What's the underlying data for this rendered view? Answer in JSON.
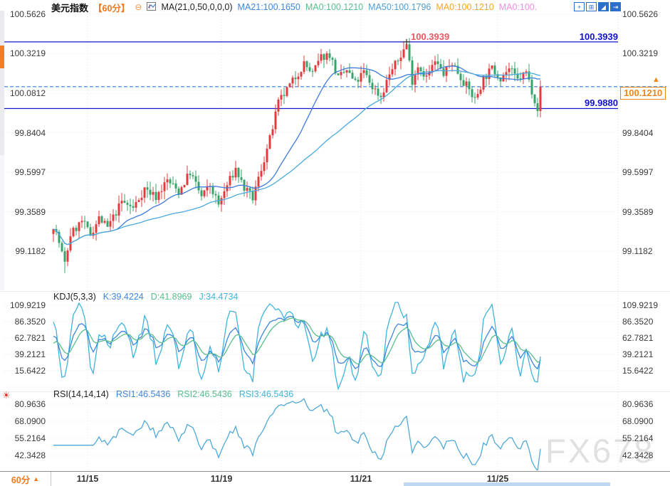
{
  "header": {
    "title": "美元指数",
    "period": "【60分】",
    "collapse_glyph": "⊖",
    "ma_settings": "MA(21,0,50,0,0,0)",
    "ma_values": [
      {
        "label": "MA21:100.1650",
        "color": "#3E86DD"
      },
      {
        "label": "MA0:100.1210",
        "color": "#57BE8C"
      },
      {
        "label": "MA50:100.1796",
        "color": "#4E9CD6"
      },
      {
        "label": "MA0:100.1210",
        "color": "#F5A429"
      },
      {
        "label": "MA0:100.",
        "color": "#EF8FE0"
      }
    ]
  },
  "toolbar": {
    "icons": [
      {
        "name": "pan-tool-icon",
        "glyph": "+"
      },
      {
        "name": "axis-scale-icon",
        "glyph": "⊞"
      },
      {
        "name": "auto-fit-icon",
        "glyph": "◢"
      },
      {
        "name": "exit-fullscreen-icon",
        "glyph": "⇥"
      }
    ]
  },
  "levels": {
    "resistance": "100.3939",
    "support": "99.9880",
    "current_price": "100.1210"
  },
  "kdj_header": {
    "name": "KDJ(5,3,3)",
    "k": "K:39.4224",
    "d": "D:41.8969",
    "j": "J:34.4734"
  },
  "rsi_header": {
    "name": "RSI(14,14,14)",
    "rsi1": "RSI1:46.5436",
    "rsi2": "RSI2:46.5436",
    "rsi3": "RSI3:46.5436"
  },
  "footer": {
    "period": "60分",
    "arrow": "▲"
  },
  "watermark": "FX678",
  "chart_data": {
    "type": "candlestick",
    "title": "美元指数 60分",
    "bars": 172,
    "price_axis": [
      "100.5626",
      "100.3219",
      "100.0812",
      "99.8404",
      "99.5997",
      "99.3589",
      "99.1182"
    ],
    "price_axis_right": [
      "100.5626",
      "100.3219",
      "99.8404",
      "99.5997",
      "99.3589",
      "99.1182"
    ],
    "x_ticks": [
      {
        "label": "11/15",
        "bar": 12
      },
      {
        "label": "11/19",
        "bar": 59
      },
      {
        "label": "11/21",
        "bar": 108
      },
      {
        "label": "11/25",
        "bar": 156
      }
    ],
    "close_anchors": [
      [
        0,
        99.28
      ],
      [
        2,
        99.17
      ],
      [
        4,
        99.04
      ],
      [
        6,
        99.22
      ],
      [
        10,
        99.3
      ],
      [
        13,
        99.22
      ],
      [
        16,
        99.32
      ],
      [
        19,
        99.26
      ],
      [
        24,
        99.42
      ],
      [
        28,
        99.38
      ],
      [
        32,
        99.5
      ],
      [
        36,
        99.45
      ],
      [
        40,
        99.55
      ],
      [
        44,
        99.48
      ],
      [
        48,
        99.6
      ],
      [
        52,
        99.45
      ],
      [
        55,
        99.52
      ],
      [
        58,
        99.4
      ],
      [
        61,
        99.52
      ],
      [
        64,
        99.62
      ],
      [
        67,
        99.5
      ],
      [
        70,
        99.44
      ],
      [
        73,
        99.62
      ],
      [
        76,
        99.8
      ],
      [
        79,
        100.02
      ],
      [
        82,
        100.1
      ],
      [
        85,
        100.18
      ],
      [
        88,
        100.26
      ],
      [
        91,
        100.2
      ],
      [
        94,
        100.3
      ],
      [
        97,
        100.32
      ],
      [
        100,
        100.17
      ],
      [
        103,
        100.22
      ],
      [
        106,
        100.14
      ],
      [
        109,
        100.21
      ],
      [
        112,
        100.12
      ],
      [
        115,
        100.06
      ],
      [
        118,
        100.2
      ],
      [
        121,
        100.28
      ],
      [
        124,
        100.38
      ],
      [
        126,
        100.16
      ],
      [
        128,
        100.25
      ],
      [
        131,
        100.18
      ],
      [
        134,
        100.27
      ],
      [
        137,
        100.2
      ],
      [
        140,
        100.27
      ],
      [
        143,
        100.18
      ],
      [
        146,
        100.1
      ],
      [
        148,
        100.04
      ],
      [
        151,
        100.17
      ],
      [
        154,
        100.23
      ],
      [
        157,
        100.18
      ],
      [
        160,
        100.23
      ],
      [
        163,
        100.16
      ],
      [
        166,
        100.21
      ],
      [
        168,
        100.1
      ],
      [
        170,
        99.99
      ],
      [
        171,
        100.12
      ]
    ],
    "high_extreme": {
      "bar": 124,
      "price": 100.3939
    },
    "low_extreme": {
      "bar": 4,
      "price": 98.985
    },
    "last_close": 100.121,
    "levels": {
      "resistance": 100.3939,
      "support": 99.988,
      "current": 100.121
    },
    "up_color": "#E23B3B",
    "down_color": "#35A468",
    "overlays": [
      {
        "name": "MA21",
        "period": 21,
        "color": "#3E7BD9"
      },
      {
        "name": "MA50",
        "period": 50,
        "color": "#49A8DC"
      }
    ],
    "kdj": {
      "params": [
        5,
        3,
        3
      ],
      "last": {
        "k": 39.4224,
        "d": 41.8969,
        "j": 34.4734
      },
      "axis": [
        "109.9219",
        "86.3520",
        "62.7821",
        "39.2121",
        "15.6422"
      ],
      "colors": {
        "k": "#3E86DD",
        "d": "#57BE8C",
        "j": "#3FB3DC"
      }
    },
    "rsi": {
      "params": [
        14,
        14,
        14
      ],
      "last": {
        "rsi1": 46.5436,
        "rsi2": 46.5436,
        "rsi3": 46.5436
      },
      "axis": [
        "80.9636",
        "68.0900",
        "55.2164",
        "42.3428"
      ],
      "color": "#4FA8D8"
    }
  }
}
